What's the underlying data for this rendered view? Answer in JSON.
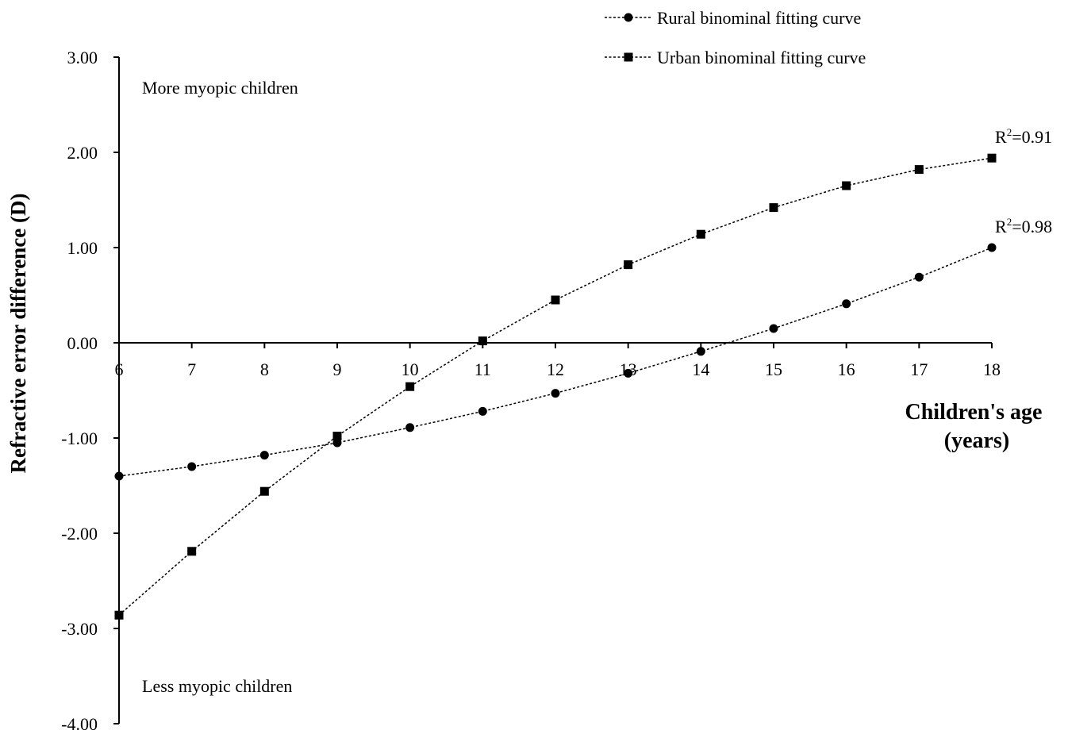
{
  "chart_data": {
    "type": "line",
    "xlabel_lines": [
      "Children's age",
      "(years)"
    ],
    "ylabel": "Refractive error difference (D)",
    "xlim": [
      6,
      18
    ],
    "ylim": [
      -4.0,
      3.0
    ],
    "x_ticks": [
      "6",
      "7",
      "8",
      "9",
      "10",
      "11",
      "12",
      "13",
      "14",
      "15",
      "16",
      "17",
      "18"
    ],
    "y_ticks": [
      "3.00",
      "2.00",
      "1.00",
      "0.00",
      "-1.00",
      "-2.00",
      "-3.00",
      "-4.00"
    ],
    "x": [
      6,
      7,
      8,
      9,
      10,
      11,
      12,
      13,
      14,
      15,
      16,
      17,
      18
    ],
    "grid": false,
    "legend_position": "top-right",
    "series": [
      {
        "name": "Rural binominal fitting curve",
        "marker": "circle",
        "color": "#000000",
        "values": [
          -1.4,
          -1.3,
          -1.18,
          -1.05,
          -0.89,
          -0.72,
          -0.53,
          -0.32,
          -0.09,
          0.15,
          0.41,
          0.69,
          1.0
        ],
        "r2_label": "=0.98"
      },
      {
        "name": "Urban binominal  fitting curve",
        "marker": "square",
        "color": "#000000",
        "values": [
          -2.86,
          -2.19,
          -1.56,
          -0.98,
          -0.46,
          0.02,
          0.45,
          0.82,
          1.14,
          1.42,
          1.65,
          1.82,
          1.94
        ],
        "r2_label": "=0.91"
      }
    ],
    "annotations": {
      "top": "More myopic children",
      "bottom": "Less myopic children"
    }
  }
}
